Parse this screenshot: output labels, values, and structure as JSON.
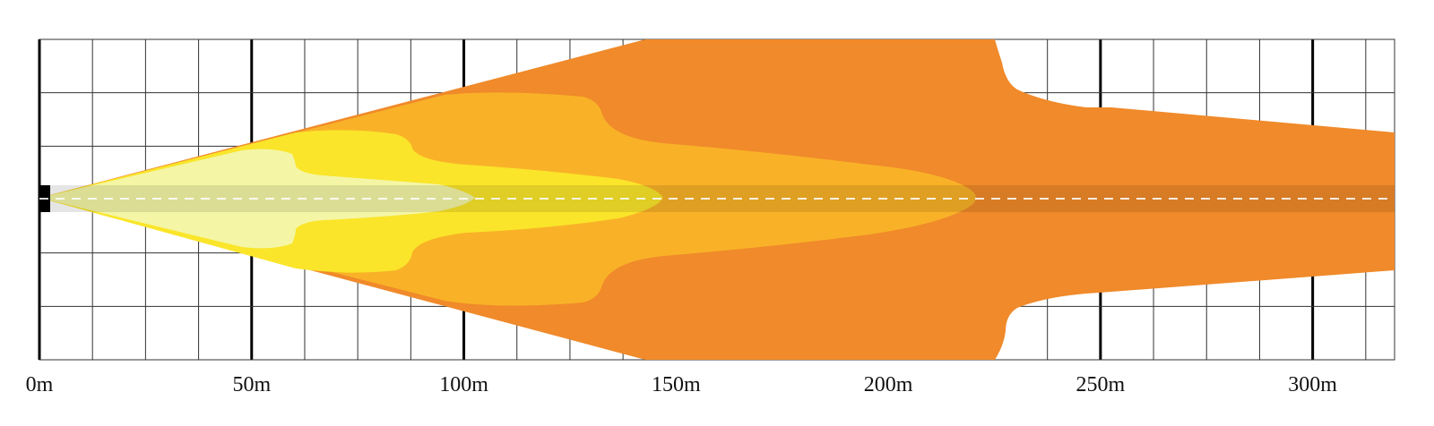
{
  "chart_data": {
    "type": "area",
    "title": "",
    "xlabel": "",
    "ylabel": "",
    "x_unit": "m",
    "xlim": [
      0,
      313
    ],
    "x_ticks": [
      {
        "value": 0,
        "label": "0m"
      },
      {
        "value": 50,
        "label": "50m"
      },
      {
        "value": 100,
        "label": "100m"
      },
      {
        "value": 150,
        "label": "150m"
      },
      {
        "value": 200,
        "label": "200m"
      },
      {
        "value": 250,
        "label": "250m"
      },
      {
        "value": 300,
        "label": "300m"
      }
    ],
    "grid": true,
    "legend": "none",
    "zones": [
      {
        "id": "zone-far",
        "color": "#f08a2a",
        "max_reach": 313
      },
      {
        "id": "zone-mid-far",
        "color": "#f9b228",
        "max_reach": 218
      },
      {
        "id": "zone-mid-near",
        "color": "#fae52a",
        "max_reach": 143
      },
      {
        "id": "zone-near",
        "color": "#f4f6a5",
        "max_reach": 99
      }
    ],
    "centerline": {
      "color": "#ffffff",
      "dashed": true
    }
  },
  "colors": {
    "grid_minor": "#333333",
    "grid_major": "#000000",
    "background": "#ffffff"
  }
}
